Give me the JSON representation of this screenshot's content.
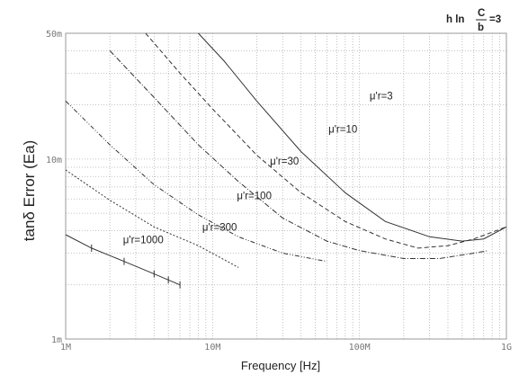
{
  "chart_data": {
    "type": "line",
    "title": "",
    "annotation": {
      "prefix": "h ln",
      "numerator": "C",
      "denominator": "b",
      "suffix": "=3"
    },
    "xlabel": "Frequency [Hz]",
    "ylabel": "tanδ Error (Ea)",
    "x_scale": "log",
    "y_scale": "log",
    "xlim": [
      1000000,
      1000000000
    ],
    "ylim": [
      0.001,
      0.05
    ],
    "x_ticks": [
      {
        "value": 1000000,
        "label": "1M"
      },
      {
        "value": 10000000,
        "label": "10M"
      },
      {
        "value": 100000000,
        "label": "100M"
      },
      {
        "value": 1000000000,
        "label": "1G"
      }
    ],
    "y_ticks": [
      {
        "value": 0.001,
        "label": "1m"
      },
      {
        "value": 0.01,
        "label": "10m"
      },
      {
        "value": 0.05,
        "label": "50m"
      }
    ],
    "grid": true,
    "series": [
      {
        "name": "μ'r=3",
        "dash": "none",
        "x": [
          8000000,
          12000000,
          20000000,
          40000000,
          80000000,
          150000000,
          300000000,
          500000000,
          700000000,
          1000000000
        ],
        "y": [
          0.05,
          0.035,
          0.021,
          0.011,
          0.0065,
          0.0045,
          0.0037,
          0.0035,
          0.0036,
          0.0042
        ]
      },
      {
        "name": "μ'r=10",
        "dash": "5 3",
        "x": [
          3500000,
          6000000,
          10000000,
          20000000,
          40000000,
          80000000,
          150000000,
          250000000,
          400000000,
          600000000,
          1000000000
        ],
        "y": [
          0.05,
          0.03,
          0.019,
          0.0105,
          0.0065,
          0.0045,
          0.0036,
          0.0032,
          0.0033,
          0.0036,
          0.0042
        ]
      },
      {
        "name": "μ'r=30",
        "dash": "6 2 1 2",
        "x": [
          2000000,
          4000000,
          8000000,
          15000000,
          30000000,
          60000000,
          100000000,
          200000000,
          350000000,
          600000000,
          750000000
        ],
        "y": [
          0.04,
          0.022,
          0.012,
          0.0075,
          0.0047,
          0.0035,
          0.0031,
          0.0028,
          0.0028,
          0.003,
          0.0031
        ]
      },
      {
        "name": "μ'r=100",
        "dash": "5 2 1 2 1 2",
        "x": [
          1000000,
          2000000,
          4000000,
          8000000,
          15000000,
          30000000,
          60000000
        ],
        "y": [
          0.021,
          0.012,
          0.0072,
          0.0049,
          0.0037,
          0.003,
          0.0027
        ]
      },
      {
        "name": "μ'r=300",
        "dash": "2 2",
        "x": [
          1000000,
          2000000,
          4000000,
          8000000,
          15000000
        ],
        "y": [
          0.0087,
          0.0059,
          0.0042,
          0.0033,
          0.0025
        ]
      },
      {
        "name": "μ'r=1000",
        "dash": "none",
        "x": [
          1000000,
          1500000,
          2500000,
          4000000,
          6000000
        ],
        "y": [
          0.0038,
          0.0032,
          0.0027,
          0.0023,
          0.002
        ]
      }
    ]
  }
}
